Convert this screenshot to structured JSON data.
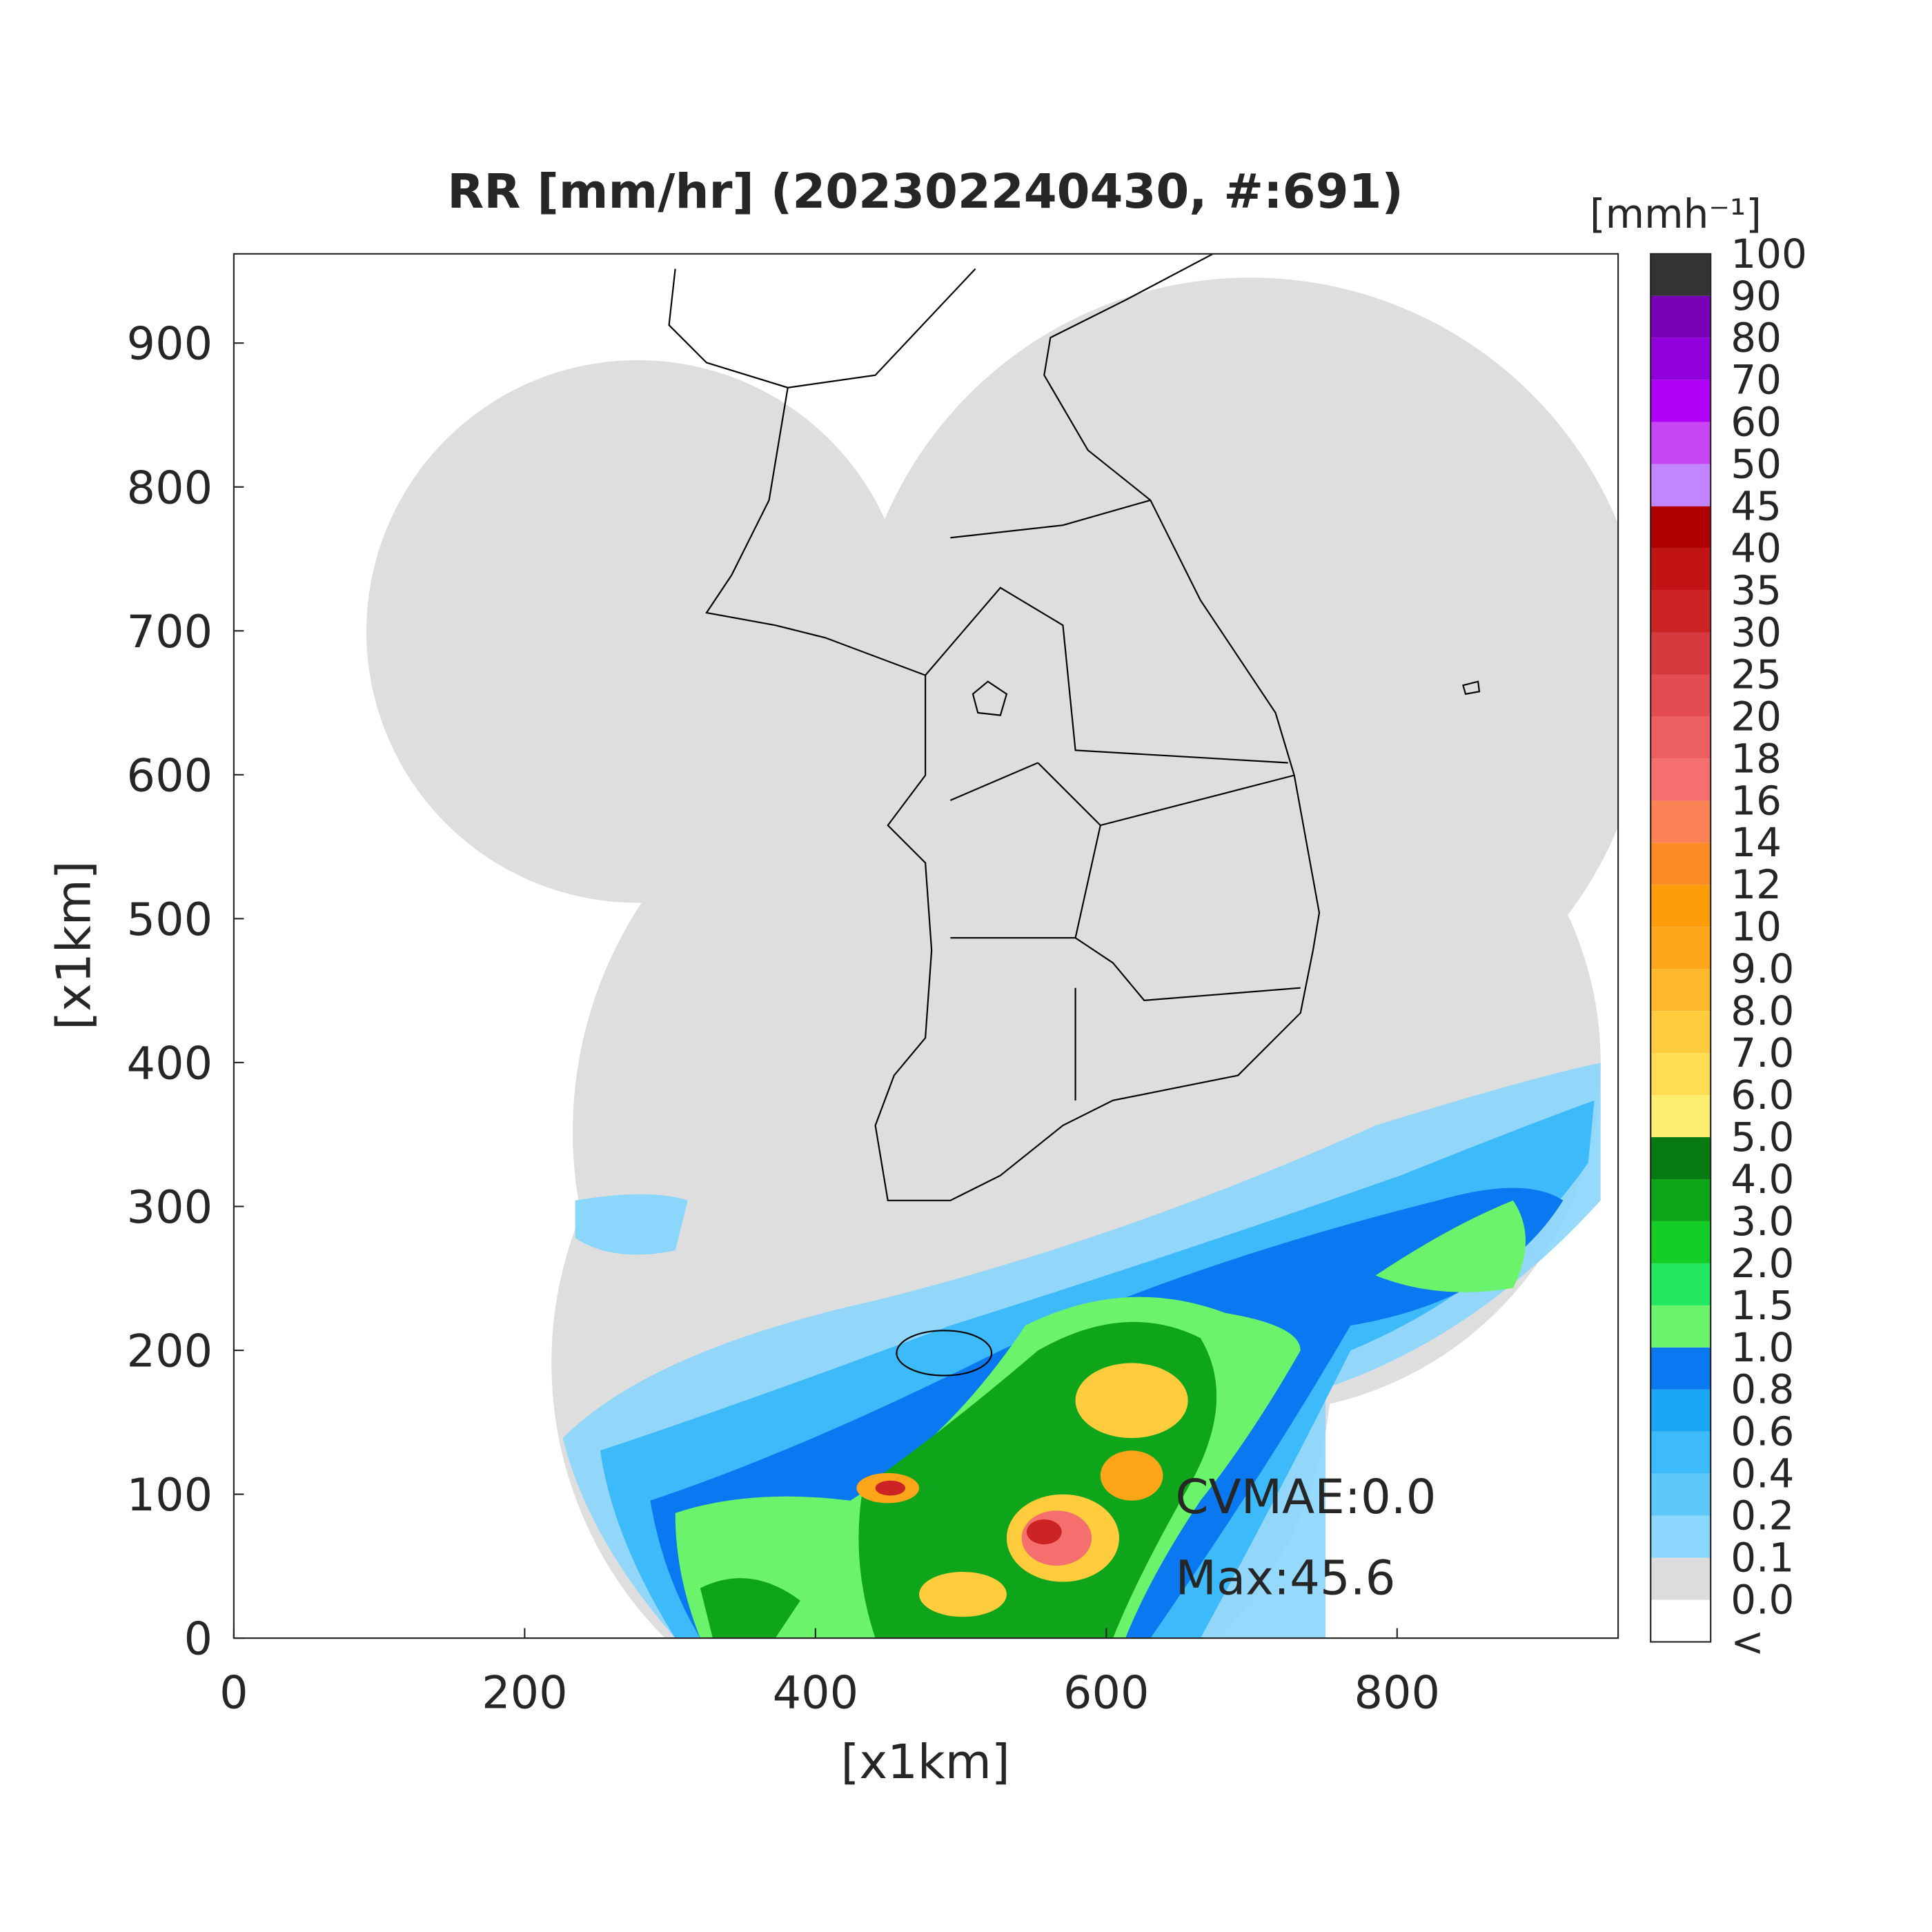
{
  "chart_data": {
    "type": "radar-map",
    "title": "RR [mm/hr] (202302240430, #:691)",
    "x_label": "[x1km]",
    "y_label": "[x1km]",
    "xlim": [
      0,
      952
    ],
    "ylim": [
      0,
      962
    ],
    "xticks": [
      0,
      200,
      400,
      600,
      800
    ],
    "yticks": [
      0,
      100,
      200,
      300,
      400,
      500,
      600,
      700,
      800,
      900
    ],
    "annotations": [
      "CVMAE:0.0",
      "Max:45.6"
    ],
    "colorbar": {
      "label": "[mmh⁻¹]",
      "labels": [
        "<",
        "0.0",
        "0.1",
        "0.2",
        "0.4",
        "0.6",
        "0.8",
        "1.0",
        "1.5",
        "2.0",
        "3.0",
        "4.0",
        "5.0",
        "6.0",
        "7.0",
        "8.0",
        "9.0",
        "10",
        "12",
        "14",
        "16",
        "18",
        "20",
        "25",
        "30",
        "35",
        "40",
        "45",
        "50",
        "60",
        "70",
        "80",
        "90",
        "100"
      ],
      "colors": [
        "#ffffff",
        "#dcdcdc",
        "#8ad6fd",
        "#5ec8fb",
        "#3cbaf9",
        "#19a6f5",
        "#0a78f0",
        "#6cf36c",
        "#22e85f",
        "#14cd26",
        "#0fa51a",
        "#087a12",
        "#feee70",
        "#fedd55",
        "#fecc3c",
        "#feb82a",
        "#fea51a",
        "#fe9d09",
        "#fd8a25",
        "#fa8254",
        "#f56f6e",
        "#ee5f64",
        "#e24c52",
        "#d73a3e",
        "#cc2424",
        "#c21414",
        "#b00000",
        "#c384ff",
        "#c745f2",
        "#b000f6",
        "#8f00dd",
        "#7a00b8",
        "#333333"
      ]
    }
  }
}
